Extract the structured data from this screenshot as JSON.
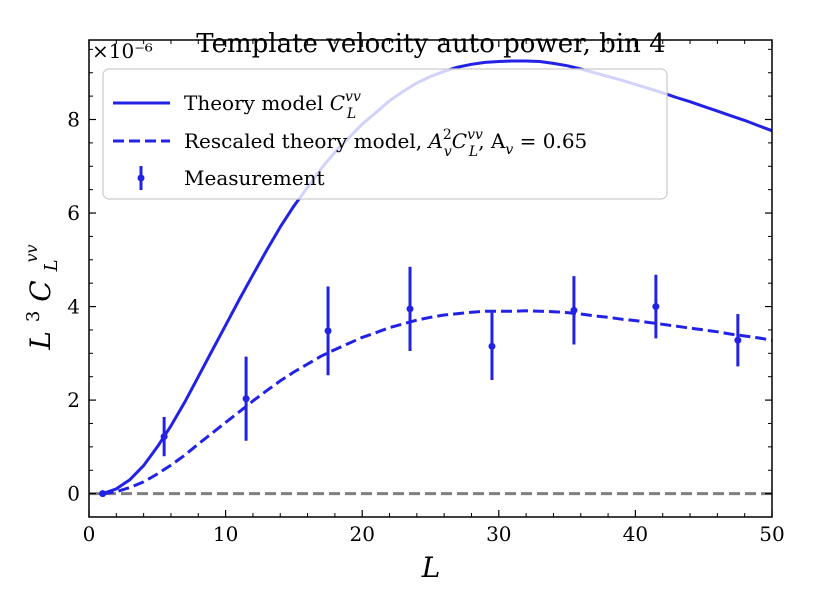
{
  "chart_data": {
    "type": "line",
    "title": "Template velocity auto power, bin 4",
    "xlabel": "L",
    "ylabel": "L³C_L^{vv}",
    "ylabel_display": {
      "base": "L",
      "sup": "3",
      "main": "C",
      "sub": "L",
      "sup2": "vv"
    },
    "y_scale_label": "×10⁻⁶",
    "xlim": [
      0,
      50
    ],
    "ylim": [
      -0.5,
      9.7
    ],
    "xticks": [
      0,
      10,
      20,
      30,
      40,
      50
    ],
    "yticks": [
      0,
      2,
      4,
      6,
      8
    ],
    "xtick_labels": [
      "0",
      "10",
      "20",
      "30",
      "40",
      "50"
    ],
    "ytick_labels": [
      "0",
      "2",
      "4",
      "6",
      "8"
    ],
    "colors": {
      "series": "#2222e6",
      "zero_line": "#808080",
      "axis": "#000000"
    },
    "legend_position": "top-left",
    "legend": [
      {
        "label": "Theory model C_L^{vv}",
        "style": "solid"
      },
      {
        "label": "Rescaled theory model, A_v^2 C_L^{vv}, A_v = 0.65",
        "style": "dashed"
      },
      {
        "label": "Measurement",
        "style": "errorbar"
      }
    ],
    "legend_display": [
      {
        "text": "Theory model ",
        "math": "C",
        "sub": "L",
        "sup": "vv",
        "tail": ""
      },
      {
        "text": "Rescaled theory model, ",
        "math": "A",
        "sub": "v",
        "sup": "2",
        "tail2_math": "C",
        "tail2_sub": "L",
        "tail2_sup": "vv",
        "tail": ", A",
        "tail_sub": "v",
        "tail_end": " = 0.65"
      },
      {
        "text": "Measurement"
      }
    ],
    "series": [
      {
        "name": "Theory model",
        "style": "solid",
        "x": [
          1,
          2,
          3,
          4,
          5,
          6,
          7,
          8,
          9,
          10,
          11,
          12,
          13,
          14,
          15,
          16,
          17,
          18,
          19,
          20,
          21,
          22,
          23,
          24,
          25,
          26,
          27,
          28,
          29,
          30,
          31,
          32,
          33,
          34,
          35,
          36,
          37,
          38,
          39,
          40,
          41,
          42,
          43,
          44,
          45,
          46,
          47,
          48,
          49,
          50
        ],
        "values": [
          0.0,
          0.1,
          0.3,
          0.6,
          1.0,
          1.45,
          1.95,
          2.5,
          3.05,
          3.6,
          4.15,
          4.68,
          5.2,
          5.7,
          6.15,
          6.55,
          6.95,
          7.3,
          7.6,
          7.9,
          8.15,
          8.4,
          8.6,
          8.78,
          8.92,
          9.03,
          9.12,
          9.18,
          9.22,
          9.24,
          9.25,
          9.25,
          9.24,
          9.2,
          9.15,
          9.08,
          9.0,
          8.92,
          8.84,
          8.75,
          8.66,
          8.57,
          8.47,
          8.38,
          8.28,
          8.18,
          8.08,
          7.98,
          7.87,
          7.76
        ]
      },
      {
        "name": "Rescaled theory model",
        "style": "dashed",
        "x": [
          1,
          2,
          3,
          4,
          5,
          6,
          7,
          8,
          9,
          10,
          11,
          12,
          13,
          14,
          15,
          16,
          17,
          18,
          19,
          20,
          21,
          22,
          23,
          24,
          25,
          26,
          27,
          28,
          29,
          30,
          31,
          32,
          33,
          34,
          35,
          36,
          37,
          38,
          39,
          40,
          41,
          42,
          43,
          44,
          45,
          46,
          47,
          48,
          49,
          50
        ],
        "values": [
          0.0,
          0.04,
          0.13,
          0.25,
          0.42,
          0.61,
          0.82,
          1.06,
          1.29,
          1.52,
          1.75,
          1.98,
          2.2,
          2.41,
          2.6,
          2.77,
          2.94,
          3.08,
          3.21,
          3.34,
          3.44,
          3.55,
          3.63,
          3.71,
          3.77,
          3.82,
          3.85,
          3.88,
          3.9,
          3.9,
          3.9,
          3.91,
          3.9,
          3.89,
          3.87,
          3.84,
          3.8,
          3.77,
          3.73,
          3.7,
          3.66,
          3.62,
          3.58,
          3.54,
          3.5,
          3.46,
          3.41,
          3.37,
          3.33,
          3.28
        ]
      }
    ],
    "measurements": [
      {
        "x": 1.0,
        "y": 0.0,
        "err": 0.0
      },
      {
        "x": 5.5,
        "y": 1.22,
        "err": 0.42
      },
      {
        "x": 11.5,
        "y": 2.03,
        "err": 0.9
      },
      {
        "x": 17.5,
        "y": 3.48,
        "err": 0.95
      },
      {
        "x": 23.5,
        "y": 3.95,
        "err": 0.9
      },
      {
        "x": 29.5,
        "y": 3.15,
        "err": 0.72
      },
      {
        "x": 35.5,
        "y": 3.92,
        "err": 0.73
      },
      {
        "x": 41.5,
        "y": 4.0,
        "err": 0.68
      },
      {
        "x": 47.5,
        "y": 3.28,
        "err": 0.56
      }
    ],
    "zero_line": {
      "y": 0,
      "style": "dashed"
    }
  }
}
